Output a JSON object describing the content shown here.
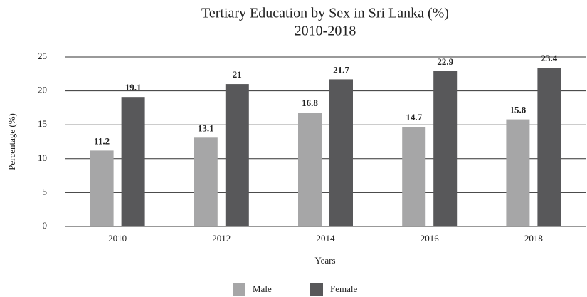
{
  "chart_data": {
    "type": "bar",
    "title": "Tertiary Education by Sex in Sri Lanka (%)",
    "subtitle": "2010-2018",
    "x_label": "Years",
    "y_label": "Percentage (%)",
    "categories": [
      "2010",
      "2012",
      "2014",
      "2016",
      "2018"
    ],
    "series": [
      {
        "name": "Male",
        "color": "#a6a6a7",
        "values": [
          11.2,
          13.1,
          16.8,
          14.7,
          15.8
        ]
      },
      {
        "name": "Female",
        "color": "#58585a",
        "values": [
          19.1,
          21,
          21.7,
          22.9,
          23.4
        ]
      }
    ],
    "ylim": [
      0,
      25
    ],
    "yticks": [
      0,
      5,
      10,
      15,
      20,
      25
    ],
    "grid": true,
    "legend": "bottom"
  }
}
